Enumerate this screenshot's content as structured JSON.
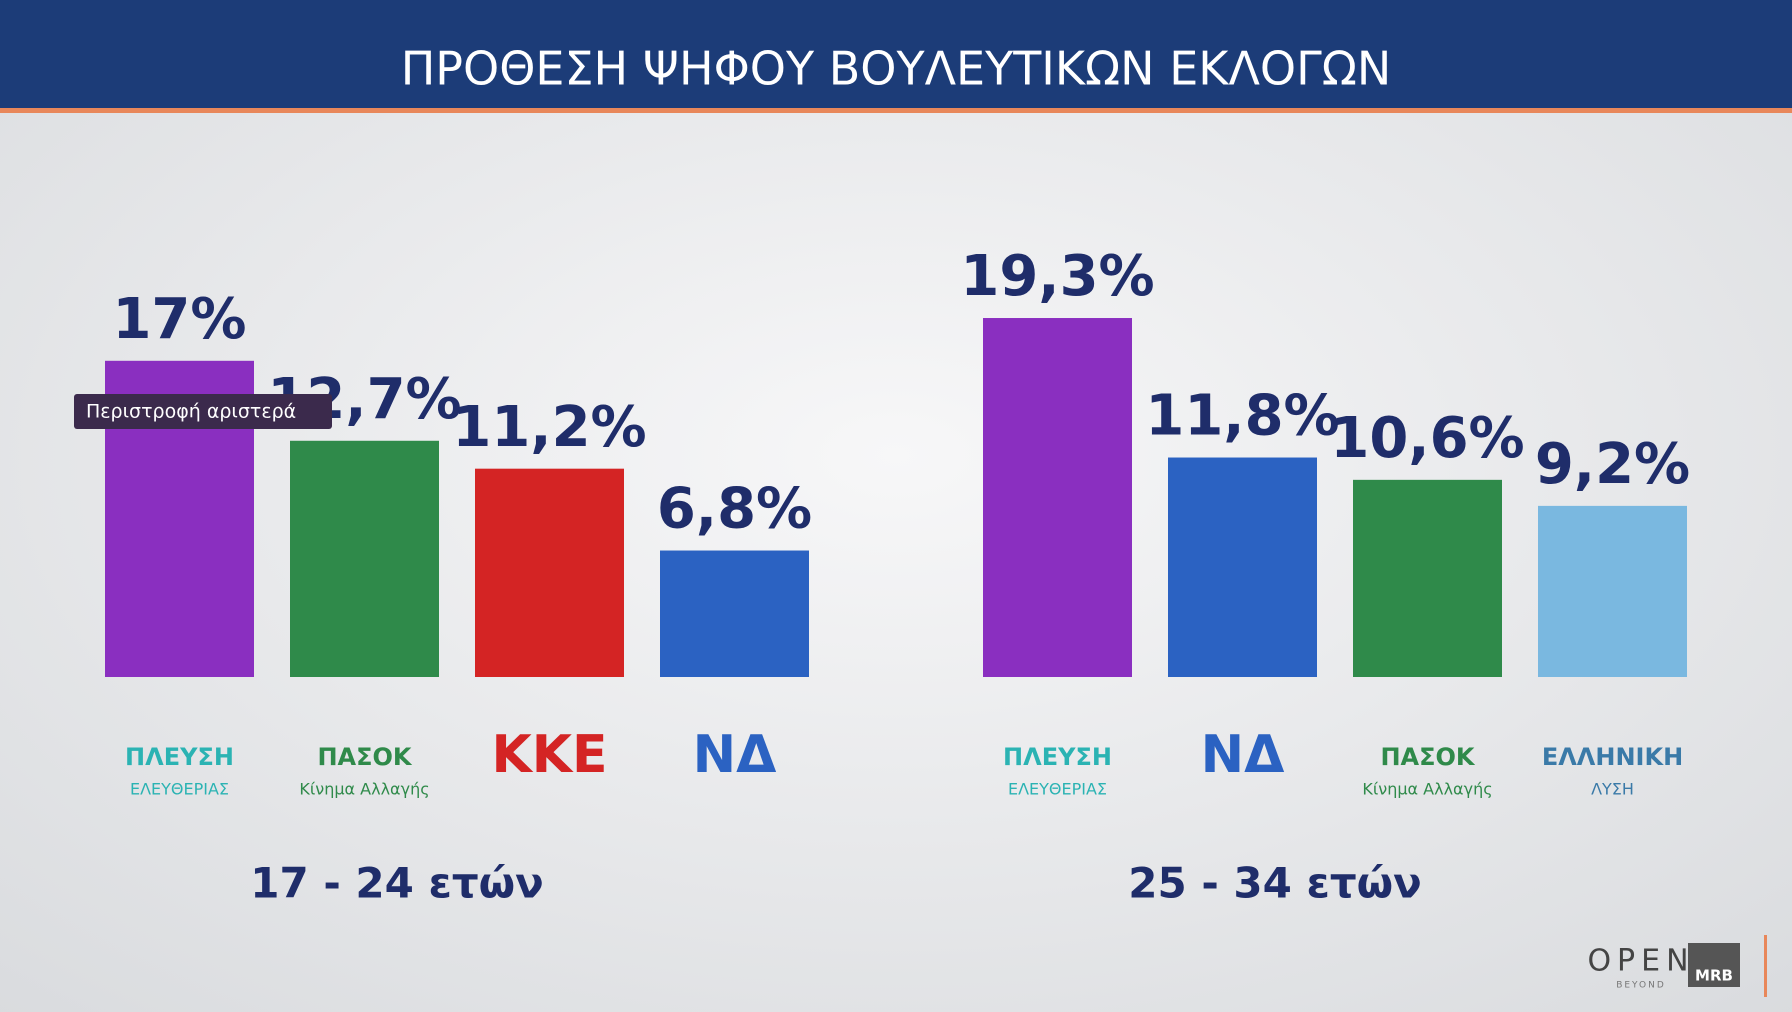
{
  "header": {
    "title": "ΠΡΟΘΕΣΗ ΨΗΦΟΥ ΒΟΥΛΕΥΤΙΚΩΝ ΕΚΛΟΓΩΝ"
  },
  "tooltip": "Περιστροφή αριστερά",
  "branding": {
    "channel": "OPEN",
    "tagline": "BEYOND",
    "pollster": "MRB"
  },
  "chart_data": [
    {
      "type": "bar",
      "subtitle": "17 - 24 ετών",
      "categories": [
        "ΠΛΕΥΣΗ",
        "ΠΑΣΟΚ",
        "ΚΚΕ",
        "ΝΔ"
      ],
      "category_sublabels": [
        "ΕΛΕΥΘΕΡΙΑΣ",
        "Κίνημα Αλλαγής",
        null,
        null
      ],
      "values": [
        17,
        12.7,
        11.2,
        6.8
      ],
      "value_labels": [
        "17%",
        "12,7%",
        "11,2%",
        "6,8%"
      ],
      "colors": [
        "#8a2fc0",
        "#2f8a4a",
        "#d42424",
        "#2b62c2"
      ],
      "logo_colors": [
        "#2bb3b3",
        "#2f8a4a",
        "#d42424",
        "#2b62c2"
      ]
    },
    {
      "type": "bar",
      "subtitle": "25 - 34 ετών",
      "categories": [
        "ΠΛΕΥΣΗ",
        "ΝΔ",
        "ΠΑΣΟΚ",
        "ΕΛΛΗΝΙΚΗ"
      ],
      "category_sublabels": [
        "ΕΛΕΥΘΕΡΙΑΣ",
        null,
        "Κίνημα Αλλαγής",
        "ΛΥΣΗ"
      ],
      "values": [
        19.3,
        11.8,
        10.6,
        9.2
      ],
      "value_labels": [
        "19,3%",
        "11,8%",
        "10,6%",
        "9,2%"
      ],
      "colors": [
        "#8a2fc0",
        "#2b62c2",
        "#2f8a4a",
        "#7ab8e0"
      ],
      "logo_colors": [
        "#2bb3b3",
        "#2b62c2",
        "#2f8a4a",
        "#3a7aa8"
      ]
    }
  ]
}
